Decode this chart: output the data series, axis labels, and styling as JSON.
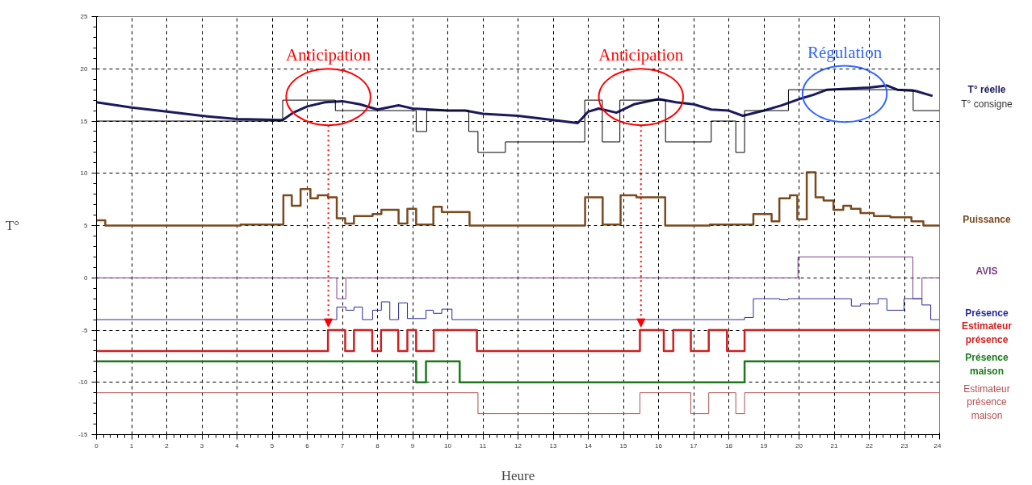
{
  "chart_data": {
    "type": "step",
    "xlabel": "Heure",
    "ylabel": "T°",
    "xlim": [
      0,
      24
    ],
    "ylim": [
      -15,
      25
    ],
    "xticks": [
      0,
      1,
      2,
      3,
      4,
      5,
      6,
      7,
      8,
      9,
      10,
      11,
      12,
      13,
      14,
      15,
      16,
      17,
      18,
      19,
      20,
      21,
      22,
      23,
      24
    ],
    "yticks": [
      -15,
      -10,
      -5,
      0,
      5,
      10,
      15,
      20,
      25
    ],
    "grid": true,
    "legend": false,
    "annotations": [
      "Anticipation",
      "Anticipation",
      "Régulation"
    ],
    "series": [
      {
        "name": "T° réelle",
        "type": "line",
        "color": "#1a1a5e",
        "x": [
          0,
          1,
          2,
          3,
          4,
          5.3,
          5.6,
          6,
          6.5,
          7,
          7.5,
          8,
          8.6,
          9,
          9.5,
          10,
          10.5,
          11,
          12,
          13,
          13.7,
          14,
          14.3,
          14.8,
          15.3,
          16,
          16.5,
          17,
          17.5,
          18,
          18.4,
          19,
          19.5,
          20,
          20.4,
          20.8,
          22,
          22.5,
          22.8,
          23.3,
          23.8
        ],
        "values": [
          16.8,
          16.3,
          15.9,
          15.5,
          15.2,
          15.1,
          15.8,
          16.4,
          16.8,
          16.9,
          16.6,
          16.1,
          16.5,
          16.2,
          16.1,
          16.0,
          16.0,
          15.7,
          15.5,
          15.1,
          14.8,
          15.9,
          16.2,
          15.8,
          16.6,
          17.1,
          16.8,
          16.6,
          16.1,
          16.0,
          15.5,
          16.0,
          16.5,
          17.1,
          17.5,
          18.0,
          18.2,
          18.4,
          18.0,
          17.9,
          17.4
        ]
      },
      {
        "name": "T° consigne",
        "color": "#000000",
        "x": [
          0,
          5.3,
          6.8,
          9.1,
          9.4,
          10.6,
          10.86,
          11.64,
          13.9,
          14.4,
          14.9,
          16.2,
          17.5,
          18.2,
          18.45,
          19.7,
          23.25,
          24
        ],
        "values": [
          15,
          17,
          16,
          14,
          16,
          14,
          12,
          13,
          17,
          13,
          17,
          13,
          15,
          12,
          16,
          18,
          16,
          16
        ]
      },
      {
        "name": "Puissance",
        "color": "#7a4a1e",
        "x": [
          0,
          0.25,
          4.1,
          5.32,
          5.56,
          5.81,
          6.09,
          6.3,
          6.59,
          6.84,
          7.08,
          7.33,
          7.86,
          8.11,
          8.6,
          8.85,
          9.1,
          9.59,
          9.83,
          10.62,
          13.91,
          14.41,
          14.92,
          15.37,
          16.19,
          17.46,
          18.19,
          18.7,
          19.22,
          19.44,
          19.74,
          19.95,
          20.22,
          20.47,
          20.7,
          20.98,
          21.26,
          21.48,
          21.75,
          22.13,
          22.6,
          23.2,
          23.54,
          24
        ],
        "values": [
          5.5,
          5,
          5.1,
          7.9,
          6.9,
          8.5,
          7.6,
          7.9,
          7.7,
          5.7,
          5.2,
          5.9,
          6.1,
          6.5,
          5.2,
          6.6,
          5.1,
          6.8,
          6.3,
          5,
          7.7,
          5.1,
          7.9,
          7.7,
          5,
          5.1,
          5.1,
          6.1,
          5.4,
          7.6,
          7.9,
          5.6,
          10.1,
          7.7,
          7.4,
          6.5,
          6.9,
          6.6,
          6.2,
          5.9,
          5.8,
          5.4,
          5,
          5
        ]
      },
      {
        "name": "AVIS",
        "color": "#7b3f8a",
        "x": [
          0,
          6.84,
          7.1,
          19.7,
          19.97,
          23.24,
          23.5,
          24
        ],
        "values": [
          0,
          -2,
          0,
          0,
          2,
          -2,
          0,
          0
        ]
      },
      {
        "name": "Présence",
        "color": "#2a2a9a",
        "x": [
          0,
          6.84,
          7.1,
          7.33,
          7.57,
          7.86,
          8.11,
          8.35,
          8.6,
          8.85,
          9.38,
          9.59,
          9.83,
          10.12,
          18.45,
          18.7,
          19.45,
          19.69,
          21.49,
          21.75,
          22.25,
          22.5,
          22.99,
          23.5,
          23.75,
          24
        ],
        "values": [
          -4,
          -2.8,
          -3.1,
          -2.8,
          -4,
          -3.1,
          -2.3,
          -4,
          -2.4,
          -3.9,
          -3.1,
          -3.4,
          -3,
          -4,
          -3.8,
          -2,
          -2.1,
          -2,
          -2.7,
          -2.5,
          -2,
          -3.1,
          -2,
          -2.6,
          -4,
          -4
        ]
      },
      {
        "name": "Estimateur présence",
        "color": "#cc2020",
        "x": [
          0,
          6.59,
          7.08,
          7.33,
          7.85,
          8.1,
          8.59,
          8.85,
          9.1,
          9.6,
          10.83,
          15.47,
          16.15,
          16.42,
          16.92,
          17.43,
          17.95,
          18.45,
          24
        ],
        "values": [
          -7,
          -5,
          -7,
          -5,
          -7,
          -5,
          -7,
          -5,
          -7,
          -5,
          -7,
          -5,
          -7,
          -5,
          -7,
          -5,
          -7,
          -5,
          -5
        ]
      },
      {
        "name": "Présence maison",
        "color": "#1a7a1a",
        "x": [
          0,
          9.1,
          9.38,
          10.34,
          18.45,
          24
        ],
        "values": [
          -8,
          -10,
          -8,
          -10,
          -8,
          -8
        ]
      },
      {
        "name": "Estimateur présence maison",
        "color": "#b05050",
        "x": [
          0,
          10.86,
          15.47,
          16.92,
          17.43,
          18.2,
          18.45,
          24
        ],
        "values": [
          -11,
          -13,
          -11,
          -13,
          -11,
          -13,
          -11,
          -11
        ]
      }
    ]
  }
}
